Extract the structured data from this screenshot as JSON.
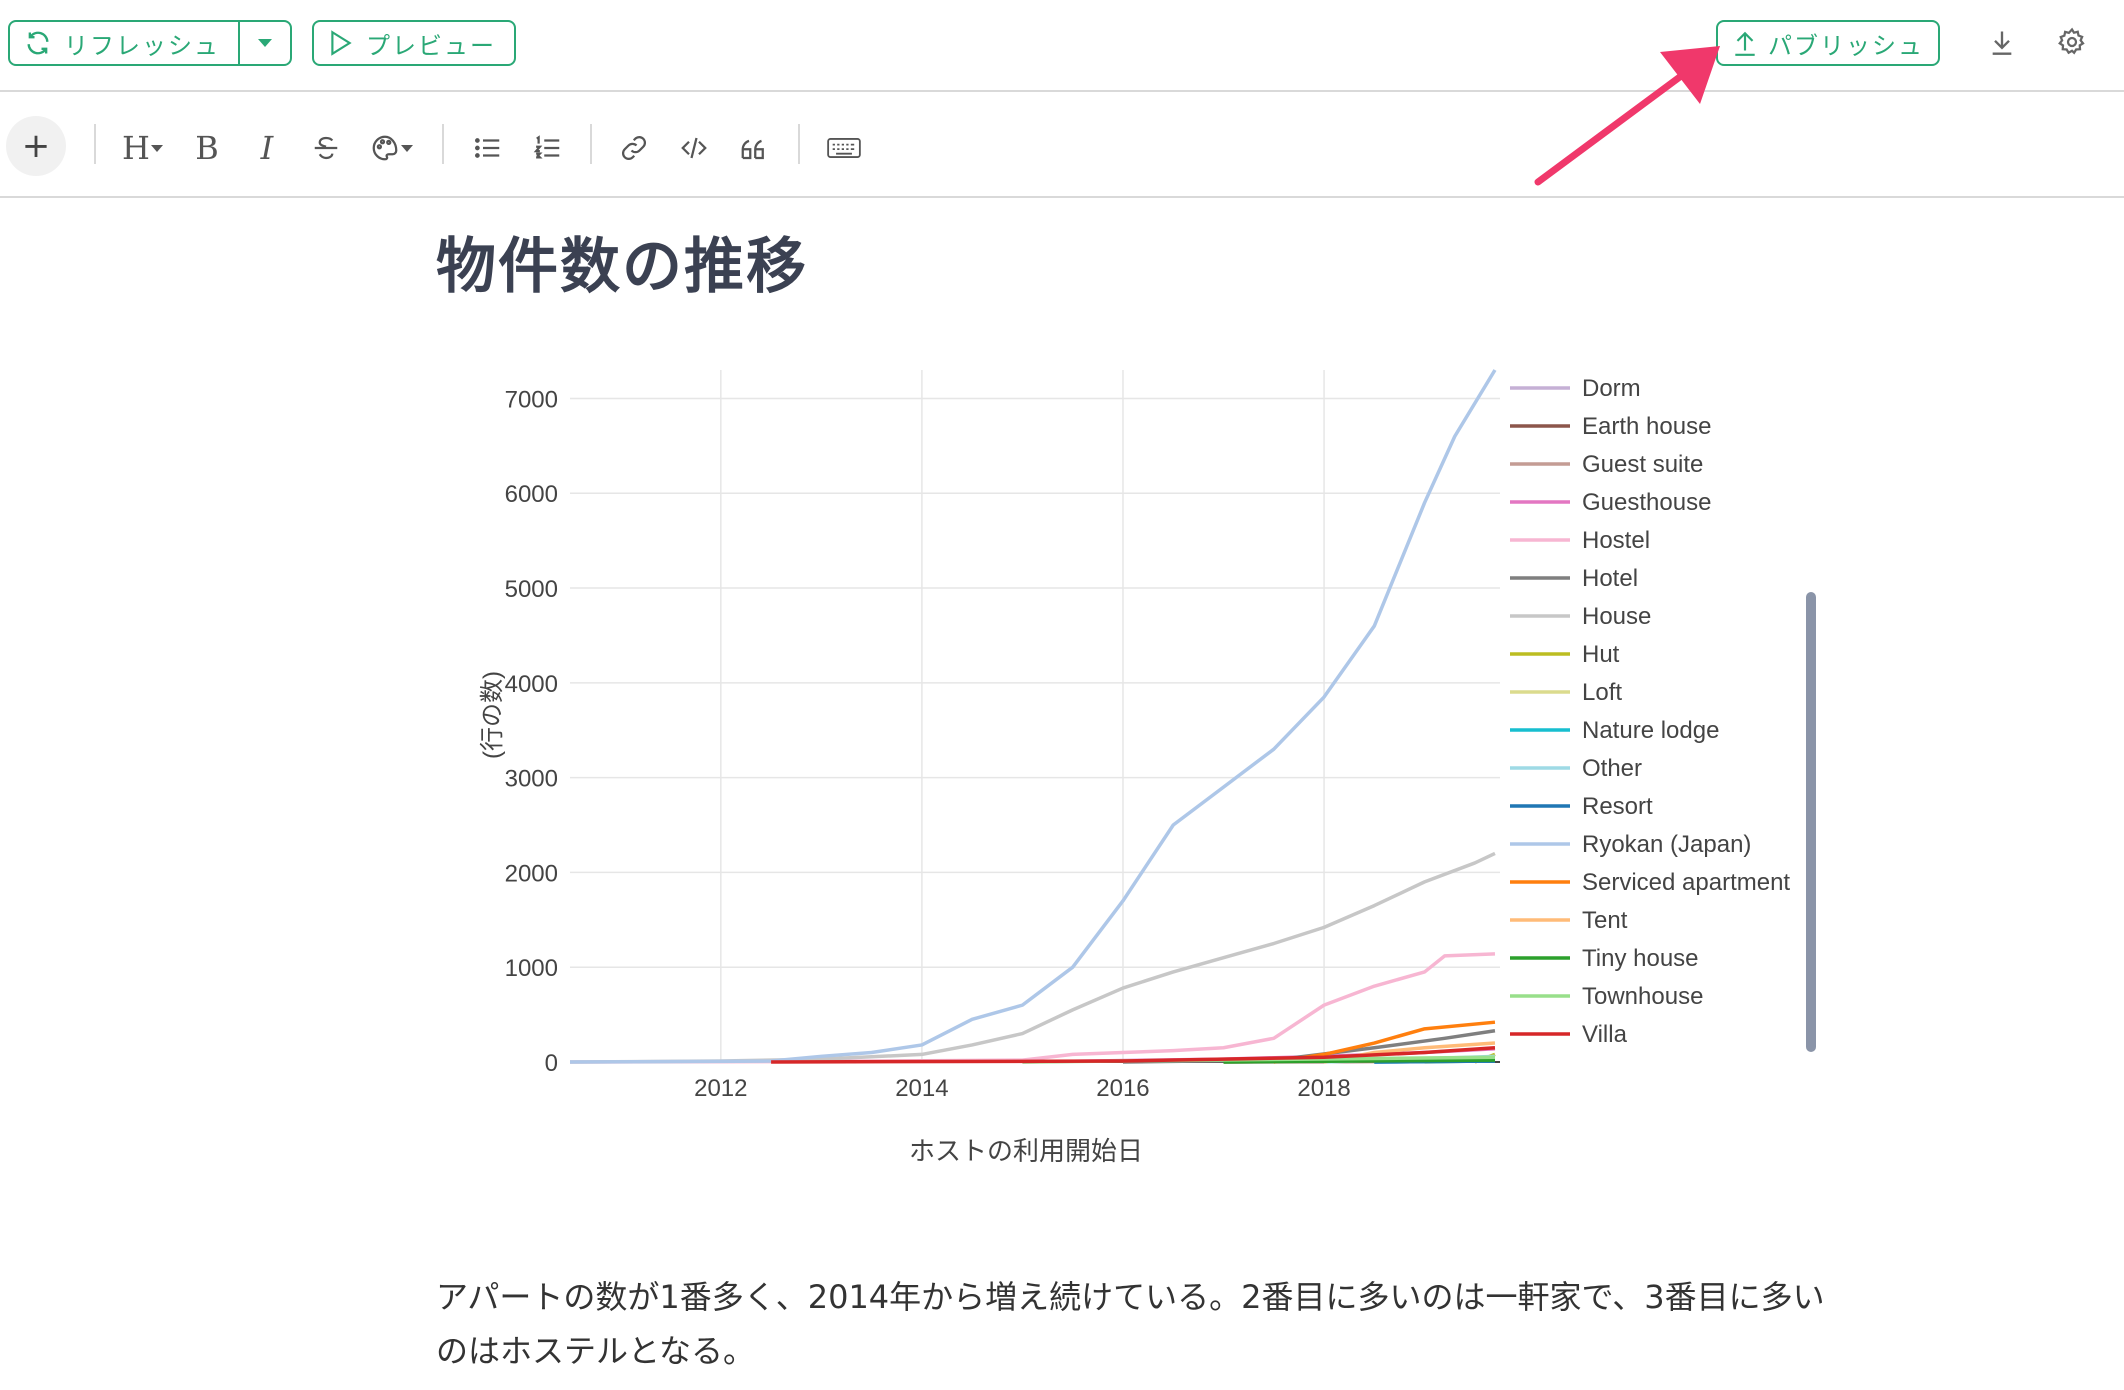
{
  "toolbar": {
    "refresh_label": "リフレッシュ",
    "preview_label": "プレビュー",
    "publish_label": "パブリッシュ",
    "accent_color": "#2aa876",
    "icons": [
      "refresh-icon",
      "caret-down-icon",
      "play-icon",
      "upload-icon",
      "download-icon",
      "gear-icon"
    ]
  },
  "format_toolbar": {
    "plus_label": "+",
    "heading_label": "H",
    "bold_label": "B",
    "italic_label": "I",
    "icons": [
      "strikethrough-icon",
      "palette-icon",
      "bullet-list-icon",
      "numbered-list-icon",
      "link-icon",
      "code-icon",
      "quote-icon",
      "keyboard-icon"
    ]
  },
  "document": {
    "title": "物件数の推移",
    "paragraph": "アパートの数が1番多く、2014年から増え続けている。2番目に多いのは一軒家で、3番目に多いのはホステルとなる。"
  },
  "annotation": {
    "arrow_color": "#f0386b",
    "target": "publish-button"
  },
  "chart_data": {
    "type": "line",
    "title": "",
    "xlabel": "ホストの利用開始日",
    "ylabel": "(行の数)",
    "xlim": [
      2010.5,
      2019.75
    ],
    "ylim": [
      0,
      7300
    ],
    "x_ticks": [
      "2012",
      "2014",
      "2016",
      "2018"
    ],
    "y_ticks": [
      "0",
      "1000",
      "2000",
      "3000",
      "4000",
      "5000",
      "6000",
      "7000"
    ],
    "grid": true,
    "legend_position": "right",
    "series": [
      {
        "name": "Dorm",
        "color": "#c5b0d5",
        "x": [
          2018.5,
          2019.7
        ],
        "y": [
          0,
          30
        ]
      },
      {
        "name": "Earth house",
        "color": "#8c564b",
        "x": [
          2017.0,
          2019.7
        ],
        "y": [
          0,
          10
        ]
      },
      {
        "name": "Guest suite",
        "color": "#c49c94",
        "x": [
          2017.0,
          2019.7
        ],
        "y": [
          0,
          20
        ]
      },
      {
        "name": "Guesthouse",
        "color": "#e377c2",
        "x": [
          2015.0,
          2017.0,
          2018.0,
          2019.0,
          2019.7
        ],
        "y": [
          0,
          30,
          60,
          100,
          140
        ]
      },
      {
        "name": "Hostel",
        "color": "#f7b6d2",
        "x": [
          2010.5,
          2013.0,
          2015.0,
          2015.5,
          2016.0,
          2016.5,
          2017.0,
          2017.5,
          2018.0,
          2018.5,
          2019.0,
          2019.2,
          2019.7
        ],
        "y": [
          0,
          5,
          20,
          80,
          100,
          120,
          150,
          250,
          600,
          800,
          950,
          1120,
          1140
        ]
      },
      {
        "name": "Hotel",
        "color": "#7f7f7f",
        "x": [
          2016.0,
          2017.5,
          2018.5,
          2019.2,
          2019.7
        ],
        "y": [
          0,
          20,
          150,
          250,
          330
        ]
      },
      {
        "name": "House",
        "color": "#c7c7c7",
        "x": [
          2010.5,
          2012.0,
          2013.0,
          2014.0,
          2014.5,
          2015.0,
          2015.5,
          2016.0,
          2016.5,
          2017.0,
          2017.5,
          2018.0,
          2018.5,
          2019.0,
          2019.5,
          2019.7
        ],
        "y": [
          0,
          10,
          30,
          80,
          180,
          300,
          550,
          780,
          950,
          1100,
          1250,
          1420,
          1650,
          1900,
          2100,
          2200
        ]
      },
      {
        "name": "Hut",
        "color": "#bcbd22",
        "x": [
          2019.5,
          2019.7
        ],
        "y": [
          0,
          80
        ]
      },
      {
        "name": "Loft",
        "color": "#dbdb8d",
        "x": [
          2019.0,
          2019.7
        ],
        "y": [
          0,
          15
        ]
      },
      {
        "name": "Nature lodge",
        "color": "#17becf",
        "x": [
          2018.5,
          2019.7
        ],
        "y": [
          0,
          10
        ]
      },
      {
        "name": "Other",
        "color": "#9edae5",
        "x": [
          2018.0,
          2019.7
        ],
        "y": [
          0,
          60
        ]
      },
      {
        "name": "Resort",
        "color": "#1f77b4",
        "x": [
          2018.5,
          2019.7
        ],
        "y": [
          0,
          10
        ]
      },
      {
        "name": "Ryokan (Japan)",
        "color": "#aec7e8",
        "x": [
          2010.5,
          2012.5,
          2013.0,
          2013.5,
          2014.0,
          2014.5,
          2015.0,
          2015.5,
          2016.0,
          2016.5,
          2017.0,
          2017.5,
          2018.0,
          2018.5,
          2019.0,
          2019.3,
          2019.7
        ],
        "y": [
          0,
          10,
          60,
          100,
          180,
          450,
          600,
          1000,
          1700,
          2500,
          2900,
          3300,
          3850,
          4600,
          5900,
          6600,
          7300
        ]
      },
      {
        "name": "Serviced apartment",
        "color": "#ff7f0e",
        "x": [
          2017.5,
          2018.0,
          2018.5,
          2019.0,
          2019.7
        ],
        "y": [
          0,
          80,
          200,
          350,
          420
        ]
      },
      {
        "name": "Tent",
        "color": "#ffbb78",
        "x": [
          2018.0,
          2018.5,
          2019.0,
          2019.7
        ],
        "y": [
          0,
          100,
          150,
          200
        ]
      },
      {
        "name": "Tiny house",
        "color": "#2ca02c",
        "x": [
          2017.0,
          2019.7
        ],
        "y": [
          0,
          20
        ]
      },
      {
        "name": "Townhouse",
        "color": "#98df8a",
        "x": [
          2015.0,
          2019.7
        ],
        "y": [
          0,
          50
        ]
      },
      {
        "name": "Villa",
        "color": "#d62728",
        "x": [
          2012.5,
          2016.0,
          2018.0,
          2019.0,
          2019.7
        ],
        "y": [
          0,
          10,
          50,
          100,
          150
        ]
      }
    ]
  }
}
